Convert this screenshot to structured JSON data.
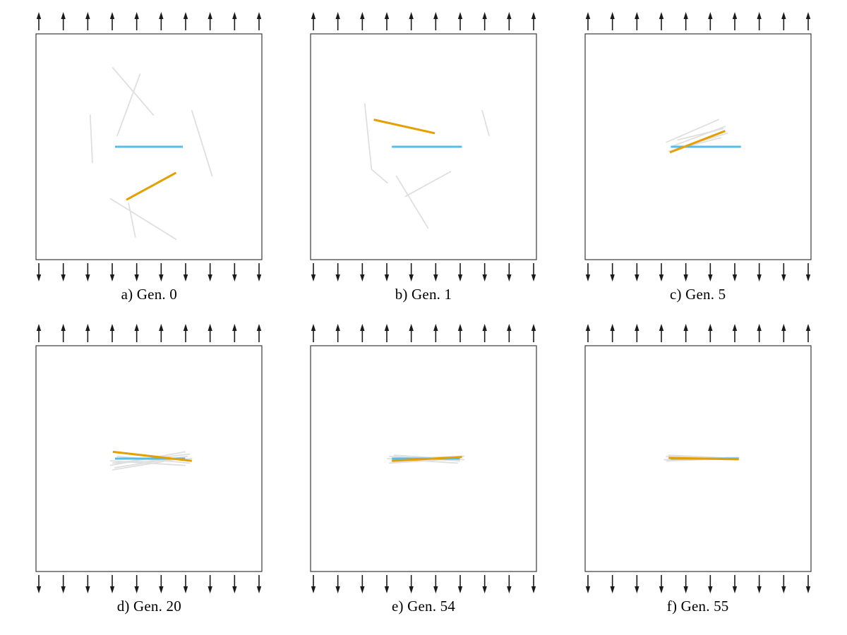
{
  "figure": {
    "description": "Evolution of crack identification over generations, square plate under vertical tension"
  },
  "style": {
    "target_color": "#56BCE8",
    "candidate_color": "#E69F00",
    "population_color": "#DCDCDC",
    "arrow_color": "#1A1A1A",
    "box_color": "#3A3A3A",
    "arrows_per_edge": 10
  },
  "panels": [
    {
      "id": "a",
      "caption": "a) Gen. 0",
      "blue_line": [
        35,
        50,
        65,
        50
      ],
      "orange_line": [
        40,
        73.5,
        62,
        61.5
      ],
      "gray_lines": [
        [
          34,
          15,
          52,
          36
        ],
        [
          46,
          18,
          36,
          45
        ],
        [
          24,
          36,
          25,
          57
        ],
        [
          69,
          34,
          78,
          63
        ],
        [
          33,
          73,
          62,
          91
        ],
        [
          41,
          75,
          44,
          90
        ]
      ]
    },
    {
      "id": "b",
      "caption": "b) Gen. 1",
      "blue_line": [
        36,
        50,
        67,
        50
      ],
      "orange_line": [
        28,
        38,
        55,
        44
      ],
      "gray_lines": [
        [
          24,
          31,
          27,
          60
        ],
        [
          76,
          34,
          79,
          45
        ],
        [
          27,
          60,
          34,
          66
        ],
        [
          38,
          63,
          52,
          86
        ],
        [
          42,
          72,
          62,
          61
        ]
      ]
    },
    {
      "id": "c",
      "caption": "c) Gen. 5",
      "blue_line": [
        38,
        50,
        69,
        50
      ],
      "orange_line": [
        37.5,
        52.5,
        62,
        43
      ],
      "gray_lines": [
        [
          36,
          48,
          59,
          38
        ],
        [
          38,
          50,
          62,
          41
        ],
        [
          40,
          51,
          63,
          44
        ],
        [
          41,
          47,
          61,
          42
        ],
        [
          37,
          52,
          60,
          46
        ]
      ]
    },
    {
      "id": "d",
      "caption": "d) Gen. 20",
      "blue_line": [
        35,
        50,
        66,
        50
      ],
      "orange_line": [
        34,
        47,
        69,
        51
      ],
      "gray_lines": [
        [
          33,
          53,
          66,
          47
        ],
        [
          34,
          52,
          68,
          48
        ],
        [
          35,
          54,
          67,
          49
        ],
        [
          33,
          51,
          66,
          53
        ],
        [
          36,
          49,
          68,
          52
        ],
        [
          34,
          55,
          64,
          50
        ],
        [
          35,
          52,
          69,
          50
        ]
      ]
    },
    {
      "id": "e",
      "caption": "e) Gen. 54",
      "blue_line": [
        36,
        50,
        66,
        50
      ],
      "orange_line": [
        36,
        51,
        67,
        49.3
      ],
      "gray_lines": [
        [
          35,
          49,
          66,
          51
        ],
        [
          36,
          51,
          67,
          49
        ],
        [
          34,
          50,
          65,
          52
        ],
        [
          37,
          48.5,
          68,
          50.5
        ],
        [
          35,
          52,
          66,
          50
        ],
        [
          36,
          50,
          68,
          49
        ]
      ]
    },
    {
      "id": "f",
      "caption": "f) Gen. 55",
      "blue_line": [
        38,
        50,
        68,
        50
      ],
      "orange_line": [
        37,
        49.7,
        68,
        50.3
      ],
      "gray_lines": [
        [
          36,
          49,
          67,
          50
        ],
        [
          35,
          50.5,
          66,
          49.5
        ],
        [
          37,
          48.5,
          68,
          50
        ],
        [
          36,
          51,
          65,
          50
        ],
        [
          37,
          50,
          68,
          49.5
        ]
      ]
    }
  ]
}
